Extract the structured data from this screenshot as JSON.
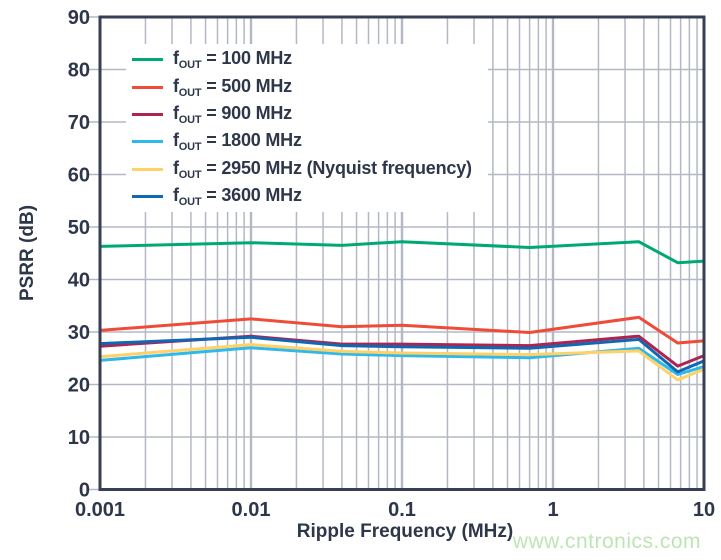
{
  "watermark": "www.cntronics.com",
  "colors": {
    "text": "#2e374a",
    "border": "#363f54",
    "grid": "#b4b8c4",
    "watermark": "#bee4b4",
    "background": "#ffffff"
  },
  "chart_data": {
    "type": "line",
    "title": "",
    "xlabel": "Ripple Frequency (MHz)",
    "ylabel": "PSRR (dB)",
    "x_scale": "log",
    "xlim": [
      0.001,
      10
    ],
    "ylim": [
      0,
      90
    ],
    "x_major_ticks": [
      0.001,
      0.01,
      0.1,
      1,
      10
    ],
    "x_tick_labels": [
      "0.001",
      "0.01",
      "0.1",
      "1",
      "10"
    ],
    "y_ticks": [
      0,
      10,
      20,
      30,
      40,
      50,
      60,
      70,
      80,
      90
    ],
    "grid": "x: major+minor (log decades), y: major every 10 dB",
    "legend_position": "top-left-inside",
    "x": [
      0.001,
      0.01,
      0.04,
      0.1,
      0.7,
      3.7,
      6.7,
      10
    ],
    "series": [
      {
        "name": "fOUT = 100 MHz",
        "legend": {
          "pre": "f",
          "sub": "OUT",
          "post": " = 100 MHz"
        },
        "color": "#00a876",
        "values": [
          46.3,
          47.0,
          46.5,
          47.2,
          46.1,
          47.2,
          43.2,
          43.5
        ]
      },
      {
        "name": "fOUT = 500 MHz",
        "legend": {
          "pre": "f",
          "sub": "OUT",
          "post": " = 500 MHz"
        },
        "color": "#ef4b37",
        "values": [
          30.3,
          32.5,
          31.0,
          31.3,
          29.9,
          32.8,
          27.9,
          28.3
        ]
      },
      {
        "name": "fOUT = 900 MHz",
        "legend": {
          "pre": "f",
          "sub": "OUT",
          "post": " = 900 MHz"
        },
        "color": "#ae2350",
        "values": [
          27.3,
          29.2,
          27.7,
          27.7,
          27.4,
          29.2,
          23.5,
          25.5
        ]
      },
      {
        "name": "fOUT = 1800 MHz",
        "legend": {
          "pre": "f",
          "sub": "OUT",
          "post": " = 1800 MHz"
        },
        "color": "#2eb8ec",
        "values": [
          24.6,
          27.0,
          25.8,
          25.5,
          25.1,
          26.9,
          21.9,
          23.4
        ]
      },
      {
        "name": "fOUT = 2950 MHz (Nyquist frequency)",
        "legend": {
          "pre": "f",
          "sub": "OUT",
          "post": " = 2950 MHz (Nyquist frequency)"
        },
        "color": "#ffd166",
        "values": [
          25.3,
          27.6,
          26.3,
          26.0,
          25.7,
          26.4,
          20.9,
          22.9
        ]
      },
      {
        "name": "fOUT = 3600 MHz",
        "legend": {
          "pre": "f",
          "sub": "OUT",
          "post": " = 3600 MHz"
        },
        "color": "#1168b2",
        "values": [
          27.8,
          29.0,
          27.4,
          27.2,
          26.9,
          28.6,
          22.4,
          24.5
        ]
      }
    ]
  }
}
